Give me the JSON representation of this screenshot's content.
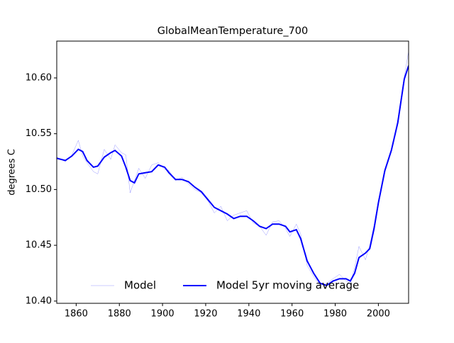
{
  "chart_data": {
    "type": "line",
    "title": "GlobalMeanTemperature_700",
    "y_label": "degrees C",
    "x": [
      1851,
      1855,
      1858,
      1861,
      1863,
      1865,
      1868,
      1870,
      1873,
      1876,
      1878,
      1881,
      1883,
      1885,
      1887,
      1889,
      1892,
      1895,
      1898,
      1901,
      1903,
      1906,
      1909,
      1912,
      1915,
      1918,
      1921,
      1924,
      1927,
      1930,
      1933,
      1936,
      1939,
      1942,
      1945,
      1948,
      1951,
      1954,
      1957,
      1959,
      1962,
      1964,
      1967,
      1970,
      1973,
      1976,
      1979,
      1982,
      1985,
      1987,
      1989,
      1991,
      1994,
      1996,
      1998,
      2000,
      2003,
      2006,
      2009,
      2012,
      2014
    ],
    "series": [
      {
        "name": "Model",
        "color": "#0000ff",
        "linewidth": 0.5,
        "opacity": 0.4,
        "values": [
          10.529,
          10.525,
          10.531,
          10.544,
          10.53,
          10.524,
          10.516,
          10.514,
          10.536,
          10.527,
          10.54,
          10.533,
          10.531,
          10.497,
          10.508,
          10.519,
          10.51,
          10.522,
          10.524,
          10.518,
          10.517,
          10.508,
          10.511,
          10.505,
          10.5,
          10.497,
          10.49,
          10.479,
          10.485,
          10.472,
          10.477,
          10.479,
          10.481,
          10.47,
          10.467,
          10.459,
          10.471,
          10.472,
          10.465,
          10.458,
          10.469,
          10.46,
          10.432,
          10.422,
          10.414,
          10.416,
          10.42,
          10.424,
          10.418,
          10.416,
          10.43,
          10.449,
          10.437,
          10.45,
          10.468,
          10.49,
          10.518,
          10.534,
          10.563,
          10.601,
          10.624
        ]
      },
      {
        "name": "Model 5yr moving average",
        "color": "#0000ff",
        "linewidth": 2,
        "opacity": 1,
        "values": [
          10.528,
          10.526,
          10.53,
          10.536,
          10.534,
          10.526,
          10.52,
          10.521,
          10.529,
          10.533,
          10.535,
          10.53,
          10.52,
          10.508,
          10.506,
          10.514,
          10.515,
          10.516,
          10.522,
          10.52,
          10.515,
          10.509,
          10.509,
          10.507,
          10.502,
          10.498,
          10.491,
          10.484,
          10.481,
          10.478,
          10.474,
          10.476,
          10.476,
          10.472,
          10.467,
          10.465,
          10.469,
          10.469,
          10.467,
          10.462,
          10.464,
          10.456,
          10.436,
          10.425,
          10.416,
          10.414,
          10.418,
          10.42,
          10.42,
          10.418,
          10.425,
          10.439,
          10.443,
          10.447,
          10.465,
          10.488,
          10.517,
          10.535,
          10.56,
          10.599,
          10.611
        ]
      }
    ],
    "xlim": [
      1851,
      2014
    ],
    "ylim": [
      10.398,
      10.633
    ],
    "xticks": [
      1860,
      1880,
      1900,
      1920,
      1940,
      1960,
      1980,
      2000
    ],
    "yticks": [
      {
        "value": 10.4,
        "label": "10.40"
      },
      {
        "value": 10.45,
        "label": "10.45"
      },
      {
        "value": 10.5,
        "label": "10.50"
      },
      {
        "value": 10.55,
        "label": "10.55"
      },
      {
        "value": 10.6,
        "label": "10.60"
      }
    ],
    "legend": "lower center"
  }
}
